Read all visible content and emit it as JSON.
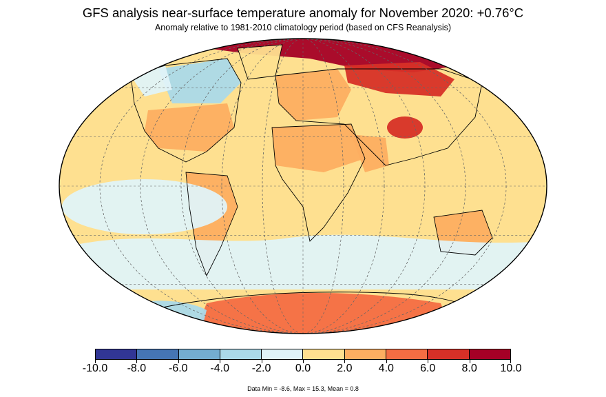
{
  "header": {
    "title": "GFS analysis near-surface temperature anomaly for November 2020: +0.76°C",
    "subtitle": "Anomaly relative to 1981-2010 climatology period (based on CFS Reanalysis)"
  },
  "map": {
    "projection": "Robinson-like elliptical world map",
    "graticule": "dashed",
    "regions": [
      {
        "name": "arctic-russia",
        "anomaly": 8.0
      },
      {
        "name": "north-central-asia",
        "anomaly": 6.0
      },
      {
        "name": "central-asia-hotspot",
        "anomaly": 6.0
      },
      {
        "name": "europe",
        "anomaly": 3.0
      },
      {
        "name": "north-africa",
        "anomaly": 3.0
      },
      {
        "name": "arabia",
        "anomaly": 3.0
      },
      {
        "name": "usa",
        "anomaly": 3.0
      },
      {
        "name": "eastern-canada",
        "anomaly": -3.0
      },
      {
        "name": "alaska",
        "anomaly": -1.0
      },
      {
        "name": "greenland",
        "anomaly": 1.0
      },
      {
        "name": "south-america",
        "anomaly": 2.0
      },
      {
        "name": "australia",
        "anomaly": 3.0
      },
      {
        "name": "antarctica-interior",
        "anomaly": 5.0
      },
      {
        "name": "antarctica-peninsula",
        "anomaly": -3.0
      },
      {
        "name": "tropical-pacific",
        "anomaly": -1.0
      },
      {
        "name": "southern-ocean",
        "anomaly": -1.0
      },
      {
        "name": "general-oceans",
        "anomaly": 1.0
      }
    ]
  },
  "colorbar": {
    "ticks": [
      "-10.0",
      "-8.0",
      "-6.0",
      "-4.0",
      "-2.0",
      "0.0",
      "2.0",
      "4.0",
      "6.0",
      "8.0",
      "10.0"
    ],
    "colors": [
      "#313695",
      "#4575b4",
      "#74add1",
      "#abd9e9",
      "#e0f3f8",
      "#fee090",
      "#fdae61",
      "#f46d43",
      "#d73027",
      "#a50026"
    ]
  },
  "footer": {
    "stats": "Data Min = -8.6, Max = 15.3, Mean = 0.8"
  }
}
